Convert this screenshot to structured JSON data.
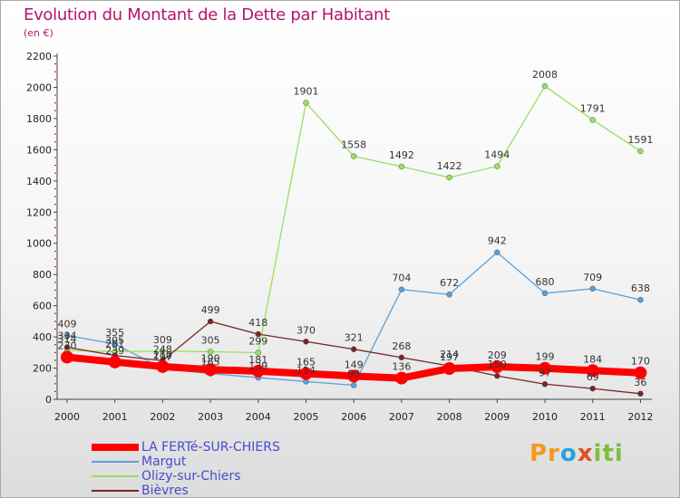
{
  "title": "Evolution du Montant de la Dette par Habitant",
  "subtitle": "(en €)",
  "logo": {
    "text": "Proxiti",
    "parts": [
      "Pr",
      "o",
      "x",
      "iti"
    ]
  },
  "chart_data": {
    "type": "line",
    "title": "Evolution du Montant de la Dette par Habitant",
    "ylabel": "(en €)",
    "ylim": [
      0,
      2200
    ],
    "yticks": [
      0,
      200,
      400,
      600,
      800,
      1000,
      1200,
      1400,
      1600,
      1800,
      2000,
      2200
    ],
    "x": [
      "2000",
      "2001",
      "2002",
      "2003",
      "2004",
      "2005",
      "2006",
      "2007",
      "2008",
      "2009",
      "2010",
      "2011",
      "2012"
    ],
    "grid": false,
    "legend_position": "bottom-left",
    "series": [
      {
        "name": "LA FERTé-SUR-CHIERS",
        "color": "#ff0000",
        "stroke_width": 8,
        "values": [
          270,
          239,
          210,
          190,
          181,
          165,
          149,
          136,
          197,
          209,
          199,
          184,
          170
        ]
      },
      {
        "name": "Margut",
        "color": "#5aa0d8",
        "stroke_width": 1.3,
        "values": [
          409,
          355,
          197,
          165,
          139,
          114,
          90,
          704,
          672,
          942,
          680,
          709,
          638
        ]
      },
      {
        "name": "Olizy-sur-Chiers",
        "color": "#99e060",
        "stroke_width": 1.3,
        "values": [
          314,
          305,
          309,
          305,
          299,
          1901,
          1558,
          1492,
          1422,
          1494,
          2008,
          1791,
          1591
        ]
      },
      {
        "name": "Bièvres",
        "color": "#7a2525",
        "stroke_width": 1.3,
        "values": [
          334,
          281,
          248,
          499,
          418,
          370,
          321,
          268,
          214,
          150,
          97,
          69,
          36
        ]
      }
    ]
  }
}
